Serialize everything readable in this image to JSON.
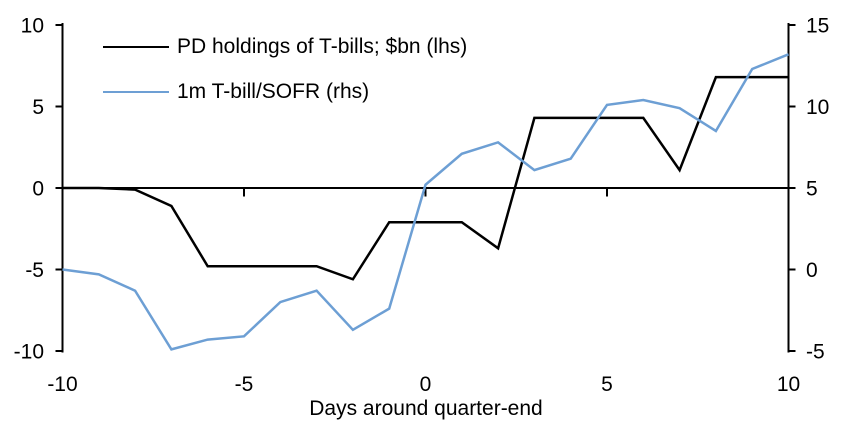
{
  "chart_data": {
    "type": "line",
    "title": "",
    "xlabel": "Days around quarter-end",
    "grid": false,
    "legend_position": "top-left",
    "zero_line": true,
    "background_color": "#ffffff",
    "x": [
      -10,
      -9,
      -8,
      -7,
      -6,
      -5,
      -4,
      -3,
      -2,
      -1,
      0,
      1,
      2,
      3,
      4,
      5,
      6,
      7,
      8,
      9,
      10
    ],
    "series": [
      {
        "name": "PD holdings of T-bills; $bn (lhs)",
        "axis": "left",
        "color": "#000000",
        "values": [
          0,
          0,
          -0.1,
          -1.1,
          -4.8,
          -4.8,
          -4.8,
          -4.8,
          -5.6,
          -2.1,
          -2.1,
          -2.1,
          -3.7,
          4.3,
          4.3,
          4.3,
          4.3,
          1.1,
          6.8,
          6.8,
          6.8
        ]
      },
      {
        "name": "1m T-bill/SOFR (rhs)",
        "axis": "right",
        "color": "#6d9fd4",
        "values": [
          0,
          -0.3,
          -1.3,
          -4.9,
          -4.3,
          -4.1,
          -2.0,
          -1.3,
          -3.7,
          -2.4,
          5.2,
          7.1,
          7.8,
          6.1,
          6.8,
          10.1,
          10.4,
          9.9,
          8.5,
          12.3,
          13.2
        ]
      }
    ],
    "axes": {
      "left": {
        "range": [
          -10,
          10
        ],
        "ticks": [
          10,
          5,
          0,
          -5,
          -10
        ],
        "labels": [
          "10",
          "5",
          "0",
          "-5",
          "-10"
        ]
      },
      "right": {
        "range": [
          -5,
          15
        ],
        "ticks": [
          15,
          10,
          5,
          0,
          -5
        ],
        "labels": [
          "15",
          "10",
          "5",
          "0",
          "-5"
        ]
      },
      "x": {
        "range": [
          -10,
          10
        ],
        "ticks": [
          -10,
          -5,
          0,
          5,
          10
        ],
        "labels": [
          "-10",
          "-5",
          "0",
          "5",
          "10"
        ]
      }
    }
  }
}
